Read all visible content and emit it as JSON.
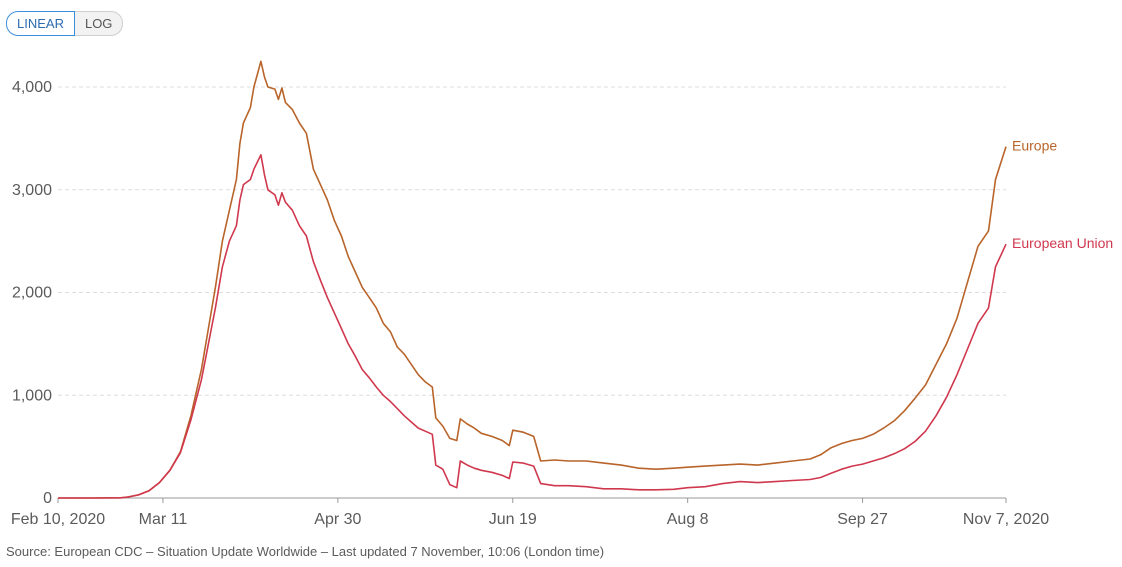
{
  "controls": {
    "linear_label": "LINEAR",
    "log_label": "LOG",
    "active": "linear"
  },
  "source_text": "Source: European CDC – Situation Update Worldwide – Last updated 7 November, 10:06 (London time)",
  "chart_data": {
    "type": "line",
    "title": "",
    "xlabel": "",
    "ylabel": "",
    "x_type": "date",
    "xlim": [
      "2020-02-10",
      "2020-11-07"
    ],
    "ylim": [
      0,
      4200
    ],
    "grid": true,
    "legend": "right-end labels",
    "x_ticks": [
      {
        "date": "2020-02-10",
        "label": "Feb 10, 2020"
      },
      {
        "date": "2020-03-11",
        "label": "Mar 11"
      },
      {
        "date": "2020-04-30",
        "label": "Apr 30"
      },
      {
        "date": "2020-06-19",
        "label": "Jun 19"
      },
      {
        "date": "2020-08-08",
        "label": "Aug 8"
      },
      {
        "date": "2020-09-27",
        "label": "Sep 27"
      },
      {
        "date": "2020-11-07",
        "label": "Nov 7, 2020"
      }
    ],
    "y_ticks": [
      {
        "value": 0,
        "label": "0"
      },
      {
        "value": 1000,
        "label": "1,000"
      },
      {
        "value": 2000,
        "label": "2,000"
      },
      {
        "value": 3000,
        "label": "3,000"
      },
      {
        "value": 4000,
        "label": "4,000"
      }
    ],
    "series": [
      {
        "name": "Europe",
        "color": "#b8642a",
        "points": [
          [
            "2020-02-10",
            0
          ],
          [
            "2020-02-20",
            0
          ],
          [
            "2020-02-28",
            2
          ],
          [
            "2020-03-01",
            10
          ],
          [
            "2020-03-04",
            30
          ],
          [
            "2020-03-07",
            70
          ],
          [
            "2020-03-10",
            150
          ],
          [
            "2020-03-13",
            270
          ],
          [
            "2020-03-16",
            450
          ],
          [
            "2020-03-19",
            800
          ],
          [
            "2020-03-22",
            1250
          ],
          [
            "2020-03-24",
            1650
          ],
          [
            "2020-03-26",
            2050
          ],
          [
            "2020-03-28",
            2500
          ],
          [
            "2020-03-30",
            2800
          ],
          [
            "2020-04-01",
            3100
          ],
          [
            "2020-04-02",
            3450
          ],
          [
            "2020-04-03",
            3650
          ],
          [
            "2020-04-05",
            3800
          ],
          [
            "2020-04-06",
            4000
          ],
          [
            "2020-04-08",
            4250
          ],
          [
            "2020-04-09",
            4100
          ],
          [
            "2020-04-10",
            4000
          ],
          [
            "2020-04-12",
            3980
          ],
          [
            "2020-04-13",
            3880
          ],
          [
            "2020-04-14",
            3990
          ],
          [
            "2020-04-15",
            3850
          ],
          [
            "2020-04-17",
            3780
          ],
          [
            "2020-04-19",
            3650
          ],
          [
            "2020-04-21",
            3550
          ],
          [
            "2020-04-23",
            3200
          ],
          [
            "2020-04-25",
            3050
          ],
          [
            "2020-04-27",
            2900
          ],
          [
            "2020-04-29",
            2700
          ],
          [
            "2020-05-01",
            2550
          ],
          [
            "2020-05-03",
            2350
          ],
          [
            "2020-05-05",
            2200
          ],
          [
            "2020-05-07",
            2050
          ],
          [
            "2020-05-09",
            1950
          ],
          [
            "2020-05-11",
            1850
          ],
          [
            "2020-05-13",
            1700
          ],
          [
            "2020-05-15",
            1620
          ],
          [
            "2020-05-17",
            1470
          ],
          [
            "2020-05-19",
            1400
          ],
          [
            "2020-05-21",
            1300
          ],
          [
            "2020-05-23",
            1200
          ],
          [
            "2020-05-25",
            1130
          ],
          [
            "2020-05-27",
            1080
          ],
          [
            "2020-05-28",
            780
          ],
          [
            "2020-05-30",
            700
          ],
          [
            "2020-06-01",
            580
          ],
          [
            "2020-06-03",
            560
          ],
          [
            "2020-06-04",
            770
          ],
          [
            "2020-06-06",
            720
          ],
          [
            "2020-06-08",
            680
          ],
          [
            "2020-06-10",
            630
          ],
          [
            "2020-06-13",
            600
          ],
          [
            "2020-06-16",
            560
          ],
          [
            "2020-06-18",
            510
          ],
          [
            "2020-06-19",
            660
          ],
          [
            "2020-06-22",
            640
          ],
          [
            "2020-06-25",
            600
          ],
          [
            "2020-06-27",
            360
          ],
          [
            "2020-07-01",
            370
          ],
          [
            "2020-07-05",
            360
          ],
          [
            "2020-07-10",
            360
          ],
          [
            "2020-07-15",
            340
          ],
          [
            "2020-07-20",
            320
          ],
          [
            "2020-07-25",
            290
          ],
          [
            "2020-07-30",
            280
          ],
          [
            "2020-08-04",
            290
          ],
          [
            "2020-08-08",
            300
          ],
          [
            "2020-08-13",
            310
          ],
          [
            "2020-08-18",
            320
          ],
          [
            "2020-08-23",
            330
          ],
          [
            "2020-08-28",
            320
          ],
          [
            "2020-09-02",
            340
          ],
          [
            "2020-09-07",
            360
          ],
          [
            "2020-09-12",
            380
          ],
          [
            "2020-09-15",
            420
          ],
          [
            "2020-09-18",
            490
          ],
          [
            "2020-09-21",
            530
          ],
          [
            "2020-09-24",
            560
          ],
          [
            "2020-09-27",
            580
          ],
          [
            "2020-09-30",
            620
          ],
          [
            "2020-10-03",
            680
          ],
          [
            "2020-10-06",
            750
          ],
          [
            "2020-10-09",
            850
          ],
          [
            "2020-10-12",
            970
          ],
          [
            "2020-10-15",
            1100
          ],
          [
            "2020-10-18",
            1300
          ],
          [
            "2020-10-21",
            1500
          ],
          [
            "2020-10-24",
            1750
          ],
          [
            "2020-10-27",
            2100
          ],
          [
            "2020-10-30",
            2450
          ],
          [
            "2020-11-02",
            2600
          ],
          [
            "2020-11-04",
            3100
          ],
          [
            "2020-11-07",
            3420
          ]
        ]
      },
      {
        "name": "European Union",
        "color": "#d0384e",
        "points": [
          [
            "2020-02-10",
            0
          ],
          [
            "2020-02-20",
            0
          ],
          [
            "2020-02-28",
            2
          ],
          [
            "2020-03-01",
            10
          ],
          [
            "2020-03-04",
            30
          ],
          [
            "2020-03-07",
            70
          ],
          [
            "2020-03-10",
            150
          ],
          [
            "2020-03-13",
            270
          ],
          [
            "2020-03-16",
            440
          ],
          [
            "2020-03-19",
            760
          ],
          [
            "2020-03-22",
            1150
          ],
          [
            "2020-03-24",
            1500
          ],
          [
            "2020-03-26",
            1850
          ],
          [
            "2020-03-28",
            2250
          ],
          [
            "2020-03-30",
            2500
          ],
          [
            "2020-04-01",
            2650
          ],
          [
            "2020-04-02",
            2900
          ],
          [
            "2020-04-03",
            3050
          ],
          [
            "2020-04-05",
            3100
          ],
          [
            "2020-04-06",
            3200
          ],
          [
            "2020-04-08",
            3340
          ],
          [
            "2020-04-09",
            3150
          ],
          [
            "2020-04-10",
            3000
          ],
          [
            "2020-04-12",
            2950
          ],
          [
            "2020-04-13",
            2850
          ],
          [
            "2020-04-14",
            2970
          ],
          [
            "2020-04-15",
            2880
          ],
          [
            "2020-04-17",
            2800
          ],
          [
            "2020-04-19",
            2650
          ],
          [
            "2020-04-21",
            2550
          ],
          [
            "2020-04-23",
            2300
          ],
          [
            "2020-04-25",
            2120
          ],
          [
            "2020-04-27",
            1950
          ],
          [
            "2020-04-29",
            1800
          ],
          [
            "2020-05-01",
            1650
          ],
          [
            "2020-05-03",
            1500
          ],
          [
            "2020-05-05",
            1380
          ],
          [
            "2020-05-07",
            1250
          ],
          [
            "2020-05-09",
            1170
          ],
          [
            "2020-05-11",
            1080
          ],
          [
            "2020-05-13",
            1000
          ],
          [
            "2020-05-15",
            940
          ],
          [
            "2020-05-17",
            870
          ],
          [
            "2020-05-19",
            800
          ],
          [
            "2020-05-21",
            740
          ],
          [
            "2020-05-23",
            680
          ],
          [
            "2020-05-25",
            650
          ],
          [
            "2020-05-27",
            620
          ],
          [
            "2020-05-28",
            320
          ],
          [
            "2020-05-30",
            280
          ],
          [
            "2020-06-01",
            130
          ],
          [
            "2020-06-03",
            100
          ],
          [
            "2020-06-04",
            360
          ],
          [
            "2020-06-06",
            320
          ],
          [
            "2020-06-08",
            290
          ],
          [
            "2020-06-10",
            270
          ],
          [
            "2020-06-13",
            250
          ],
          [
            "2020-06-16",
            220
          ],
          [
            "2020-06-18",
            190
          ],
          [
            "2020-06-19",
            350
          ],
          [
            "2020-06-22",
            340
          ],
          [
            "2020-06-25",
            310
          ],
          [
            "2020-06-27",
            140
          ],
          [
            "2020-07-01",
            120
          ],
          [
            "2020-07-05",
            120
          ],
          [
            "2020-07-10",
            110
          ],
          [
            "2020-07-15",
            90
          ],
          [
            "2020-07-20",
            90
          ],
          [
            "2020-07-25",
            80
          ],
          [
            "2020-07-30",
            80
          ],
          [
            "2020-08-04",
            85
          ],
          [
            "2020-08-08",
            100
          ],
          [
            "2020-08-13",
            110
          ],
          [
            "2020-08-18",
            140
          ],
          [
            "2020-08-23",
            160
          ],
          [
            "2020-08-28",
            150
          ],
          [
            "2020-09-02",
            160
          ],
          [
            "2020-09-07",
            170
          ],
          [
            "2020-09-12",
            180
          ],
          [
            "2020-09-15",
            200
          ],
          [
            "2020-09-18",
            240
          ],
          [
            "2020-09-21",
            280
          ],
          [
            "2020-09-24",
            310
          ],
          [
            "2020-09-27",
            330
          ],
          [
            "2020-09-30",
            360
          ],
          [
            "2020-10-03",
            390
          ],
          [
            "2020-10-06",
            430
          ],
          [
            "2020-10-09",
            480
          ],
          [
            "2020-10-12",
            550
          ],
          [
            "2020-10-15",
            650
          ],
          [
            "2020-10-18",
            800
          ],
          [
            "2020-10-21",
            980
          ],
          [
            "2020-10-24",
            1200
          ],
          [
            "2020-10-27",
            1450
          ],
          [
            "2020-10-30",
            1700
          ],
          [
            "2020-11-02",
            1850
          ],
          [
            "2020-11-04",
            2250
          ],
          [
            "2020-11-07",
            2470
          ]
        ]
      }
    ]
  }
}
